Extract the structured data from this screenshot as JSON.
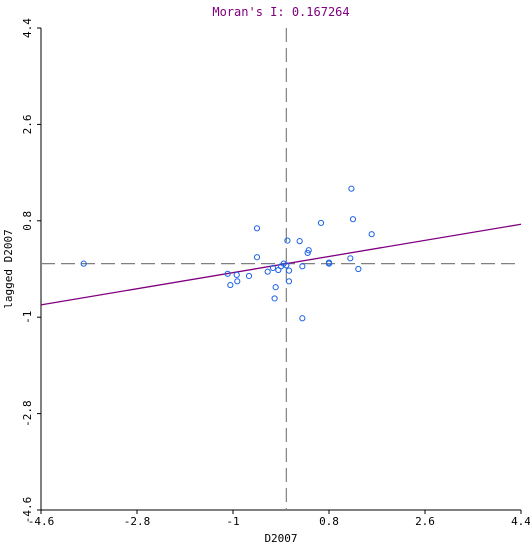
{
  "chart_data": {
    "type": "scatter",
    "title": "Moran's I: 0.167264",
    "xlabel": "D2007",
    "ylabel": "lagged D2007",
    "xlim": [
      -4.6,
      4.4
    ],
    "ylim": [
      -4.6,
      4.4
    ],
    "x_ticks": [
      "-4.6",
      "-2.8",
      "-1",
      "0.8",
      "2.6",
      "4.4"
    ],
    "y_ticks": [
      "-4.6",
      "-2.8",
      "-1",
      "0.8",
      "2.6",
      "4.4"
    ],
    "x_tick_values": [
      -4.6,
      -2.8,
      -1,
      0.8,
      2.6,
      4.4
    ],
    "y_tick_values": [
      -4.6,
      -2.8,
      -1,
      0.8,
      2.6,
      4.4
    ],
    "mean_lines": {
      "x": 0.0,
      "y": 0.0
    },
    "regression": {
      "slope": 0.167264,
      "intercept": 0.0
    },
    "points": [
      {
        "x": -3.8,
        "y": 0.0
      },
      {
        "x": -1.1,
        "y": -0.19
      },
      {
        "x": -1.05,
        "y": -0.4
      },
      {
        "x": -0.93,
        "y": -0.21
      },
      {
        "x": -0.92,
        "y": -0.33
      },
      {
        "x": -0.7,
        "y": -0.23
      },
      {
        "x": -0.55,
        "y": 0.66
      },
      {
        "x": -0.55,
        "y": 0.12
      },
      {
        "x": -0.35,
        "y": -0.15
      },
      {
        "x": -0.25,
        "y": -0.08
      },
      {
        "x": -0.22,
        "y": -0.65
      },
      {
        "x": -0.2,
        "y": -0.44
      },
      {
        "x": -0.15,
        "y": -0.12
      },
      {
        "x": -0.1,
        "y": -0.05
      },
      {
        "x": -0.05,
        "y": 0.0
      },
      {
        "x": 0.0,
        "y": -0.03
      },
      {
        "x": 0.02,
        "y": 0.43
      },
      {
        "x": 0.05,
        "y": -0.13
      },
      {
        "x": 0.05,
        "y": -0.33
      },
      {
        "x": 0.25,
        "y": 0.42
      },
      {
        "x": 0.3,
        "y": -0.05
      },
      {
        "x": 0.3,
        "y": -1.02
      },
      {
        "x": 0.4,
        "y": 0.2
      },
      {
        "x": 0.42,
        "y": 0.25
      },
      {
        "x": 0.65,
        "y": 0.76
      },
      {
        "x": 0.8,
        "y": 0.0
      },
      {
        "x": 0.8,
        "y": 0.02
      },
      {
        "x": 1.2,
        "y": 0.1
      },
      {
        "x": 1.22,
        "y": 1.4
      },
      {
        "x": 1.25,
        "y": 0.83
      },
      {
        "x": 1.35,
        "y": -0.1
      },
      {
        "x": 1.6,
        "y": 0.55
      }
    ]
  },
  "colors": {
    "title": "#800080",
    "regression_line": "#800080",
    "points": "#1e64e6",
    "mean_lines": "#808080",
    "axes": "#000000"
  }
}
